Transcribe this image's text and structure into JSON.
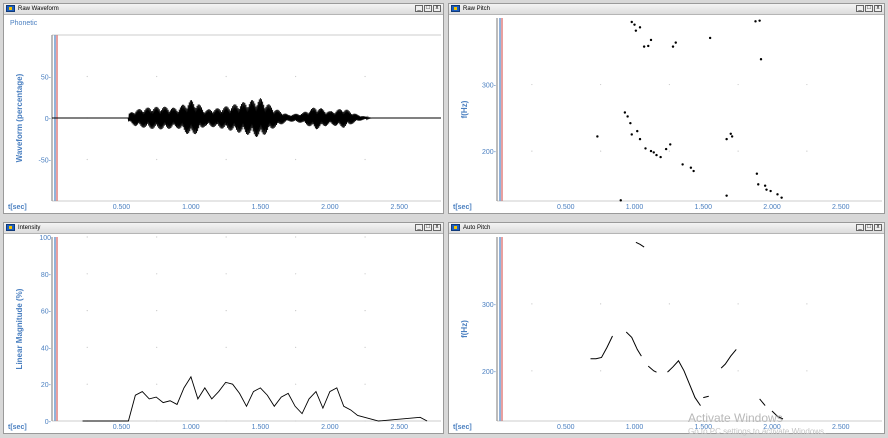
{
  "windows": {
    "raw_waveform": {
      "title": "Raw Waveform",
      "phonetic_label": "Phonetic",
      "y_label": "Waveform (percentage)",
      "y_ticks": [
        "50-",
        "0-",
        "-50-"
      ],
      "x_label": "t[sec]",
      "x_ticks": [
        "0.500",
        "1.000",
        "1.500",
        "2.000",
        "2.500"
      ]
    },
    "raw_pitch": {
      "title": "Raw Pitch",
      "y_label": "f(Hz)",
      "y_ticks": [
        "300-",
        "200-"
      ],
      "x_label": "t[sec]",
      "x_ticks": [
        "0.500",
        "1.000",
        "1.500",
        "2.000",
        "2.500"
      ]
    },
    "intensity": {
      "title": "Intensity",
      "y_label": "Linear Magnitude (%)",
      "y_ticks": [
        "100",
        "80-",
        "60-",
        "40-",
        "20-",
        "0-"
      ],
      "x_label": "t[sec]",
      "x_ticks": [
        "0.500",
        "1.000",
        "1.500",
        "2.000",
        "2.500"
      ]
    },
    "auto_pitch": {
      "title": "Auto Pitch",
      "y_label": "f(Hz)",
      "y_ticks": [
        "300-",
        "200-"
      ],
      "x_label": "t[sec]",
      "x_ticks": [
        "0.500",
        "1.000",
        "1.500",
        "2.000",
        "2.500"
      ]
    }
  },
  "window_controls": {
    "minimize": "_",
    "restore": "□",
    "close": "x"
  },
  "watermark": {
    "line1": "Activate Windows",
    "line2": "Go to PC settings to activate Windows."
  },
  "chart_data": [
    {
      "type": "area",
      "panel": "raw_waveform",
      "xlabel": "t[sec]",
      "ylabel": "Waveform (percentage)",
      "xlim": [
        0,
        2.8
      ],
      "ylim": [
        -100,
        100
      ],
      "envelope": {
        "x": [
          0.55,
          0.6,
          0.7,
          0.8,
          0.9,
          1.0,
          1.05,
          1.1,
          1.2,
          1.3,
          1.4,
          1.5,
          1.6,
          1.7,
          1.8,
          1.9,
          2.0,
          2.1,
          2.2,
          2.3
        ],
        "amplitude": [
          5,
          10,
          13,
          14,
          12,
          22,
          18,
          10,
          12,
          16,
          20,
          24,
          12,
          4,
          6,
          14,
          8,
          12,
          4,
          0
        ]
      }
    },
    {
      "type": "scatter",
      "panel": "raw_pitch",
      "xlabel": "t[sec]",
      "ylabel": "f(Hz)",
      "xlim": [
        0,
        2.8
      ],
      "ylim": [
        125,
        400
      ],
      "x": [
        0.73,
        0.93,
        0.95,
        0.97,
        0.98,
        1.02,
        1.04,
        1.08,
        1.12,
        1.14,
        1.16,
        1.19,
        1.23,
        1.26,
        1.35,
        1.41,
        1.43,
        1.55,
        1.67,
        1.7,
        1.71,
        1.89,
        1.9,
        1.95,
        1.96,
        1.99,
        2.04,
        2.07,
        0.9,
        1.0,
        0.98,
        1.01,
        1.04,
        1.12,
        1.07,
        1.1,
        1.28,
        1.3,
        1.67,
        1.88,
        1.92,
        1.91
      ],
      "y": [
        222,
        258,
        252,
        242,
        225,
        230,
        218,
        204,
        200,
        198,
        194,
        191,
        203,
        210,
        180,
        175,
        170,
        370,
        218,
        226,
        222,
        166,
        150,
        148,
        142,
        140,
        135,
        130,
        126,
        390,
        394,
        381,
        386,
        367,
        357,
        358,
        357,
        363,
        133,
        395,
        338,
        396
      ]
    },
    {
      "type": "line",
      "panel": "intensity",
      "xlabel": "t[sec]",
      "ylabel": "Linear Magnitude (%)",
      "xlim": [
        0,
        2.8
      ],
      "ylim": [
        0,
        100
      ],
      "x": [
        0.22,
        0.55,
        0.6,
        0.65,
        0.7,
        0.75,
        0.8,
        0.85,
        0.9,
        0.95,
        1.0,
        1.05,
        1.1,
        1.15,
        1.2,
        1.25,
        1.3,
        1.35,
        1.4,
        1.45,
        1.5,
        1.55,
        1.6,
        1.65,
        1.7,
        1.75,
        1.8,
        1.85,
        1.9,
        1.95,
        2.0,
        2.05,
        2.1,
        2.15,
        2.2,
        2.25,
        2.3,
        2.35,
        2.65,
        2.7
      ],
      "y": [
        0,
        0,
        14,
        16,
        12,
        13,
        10,
        11,
        9,
        18,
        24,
        12,
        18,
        12,
        16,
        21,
        20,
        15,
        8,
        16,
        18,
        14,
        8,
        13,
        15,
        8,
        4,
        12,
        16,
        7,
        16,
        18,
        8,
        6,
        3,
        2,
        1,
        0,
        2,
        0
      ]
    },
    {
      "type": "line",
      "panel": "auto_pitch",
      "xlabel": "t[sec]",
      "ylabel": "f(Hz)",
      "xlim": [
        0,
        2.8
      ],
      "ylim": [
        125,
        400
      ],
      "segments": [
        {
          "x": [
            1.01,
            1.04,
            1.07
          ],
          "y": [
            392,
            389,
            385
          ]
        },
        {
          "x": [
            0.68,
            0.72,
            0.76,
            0.8,
            0.84
          ],
          "y": [
            218,
            218,
            220,
            235,
            252
          ]
        },
        {
          "x": [
            0.94,
            0.98,
            1.02,
            1.05
          ],
          "y": [
            258,
            250,
            232,
            222
          ]
        },
        {
          "x": [
            1.1,
            1.14,
            1.16
          ],
          "y": [
            207,
            200,
            198
          ]
        },
        {
          "x": [
            1.24,
            1.28,
            1.32,
            1.36,
            1.4,
            1.44,
            1.48
          ],
          "y": [
            198,
            206,
            215,
            200,
            180,
            160,
            148
          ]
        },
        {
          "x": [
            1.5,
            1.54
          ],
          "y": [
            160,
            162
          ]
        },
        {
          "x": [
            1.63,
            1.66,
            1.7,
            1.74
          ],
          "y": [
            204,
            210,
            222,
            232
          ]
        },
        {
          "x": [
            1.91,
            1.95
          ],
          "y": [
            158,
            148
          ]
        },
        {
          "x": [
            2.0,
            2.04,
            2.08
          ],
          "y": [
            140,
            132,
            128
          ]
        }
      ]
    }
  ]
}
